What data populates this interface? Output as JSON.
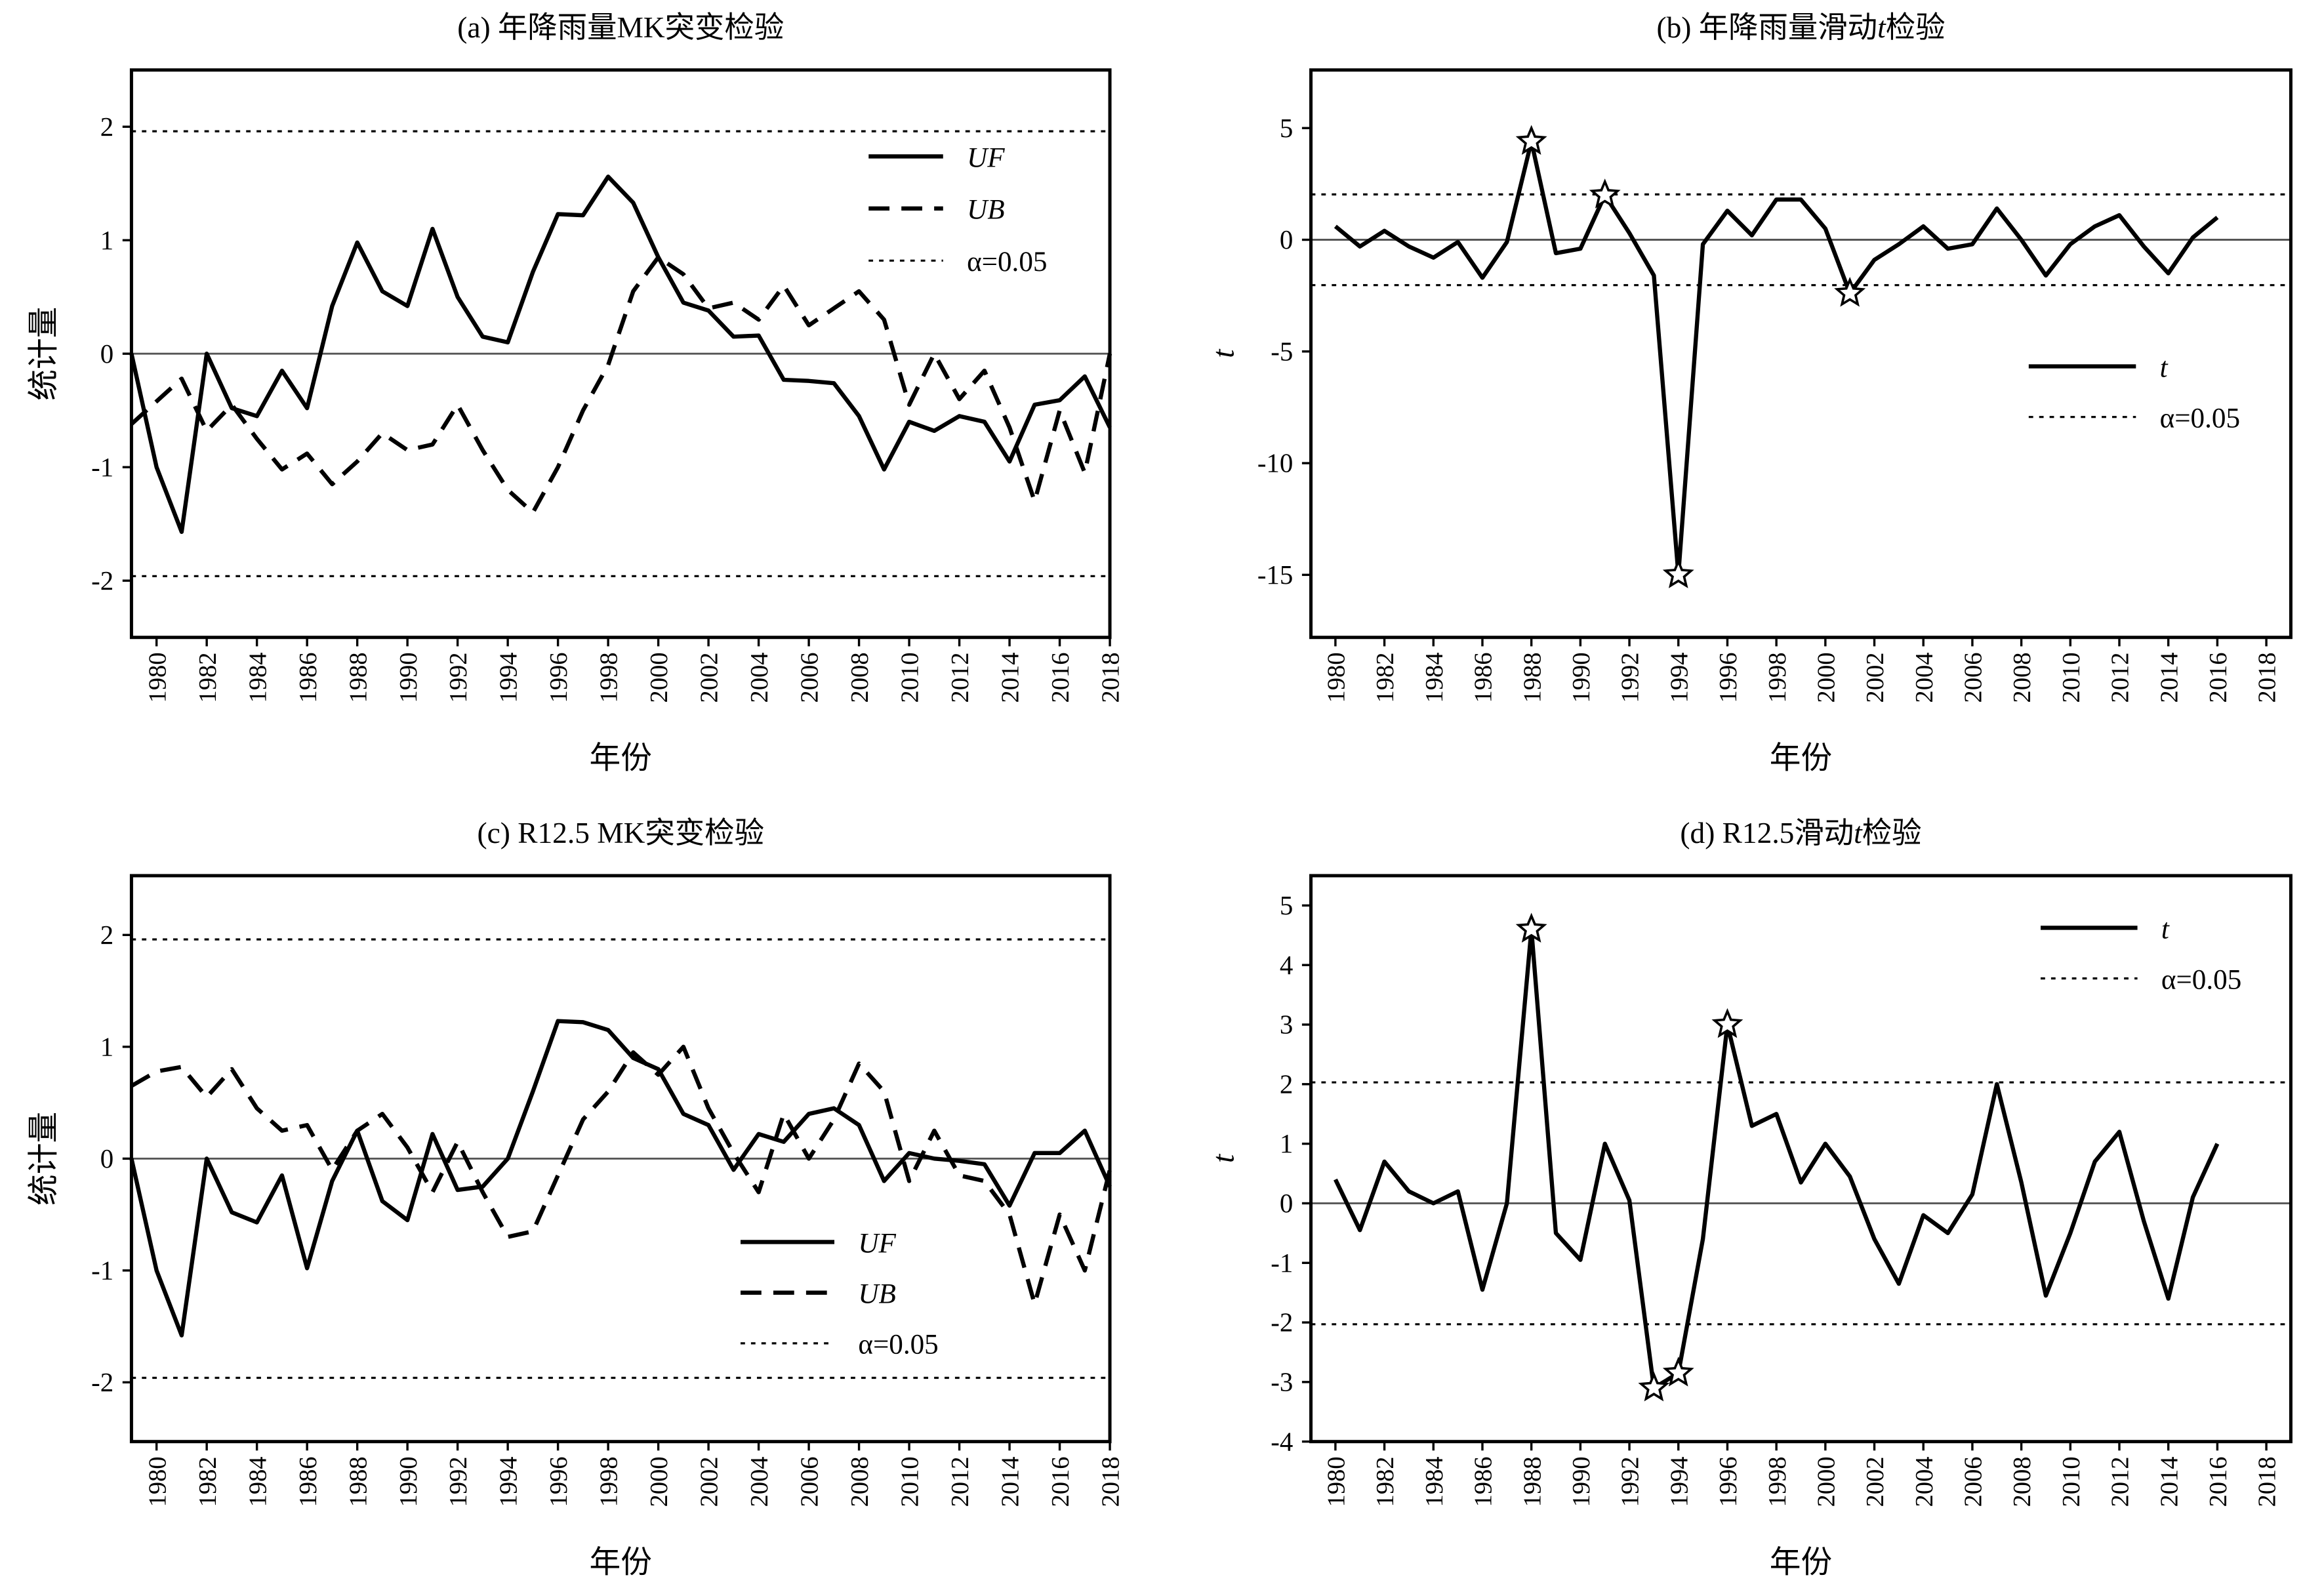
{
  "chart_data": [
    {
      "id": "a",
      "type": "line",
      "title_parts": [
        "(a) 年降雨量MK突变检验"
      ],
      "xlabel": "年份",
      "ylabel": "统计量",
      "ylabel_italic": false,
      "xlim": [
        1979,
        2018
      ],
      "ylim": [
        -2.5,
        2.5
      ],
      "xticks": [
        1980,
        1982,
        1984,
        1986,
        1988,
        1990,
        1992,
        1994,
        1996,
        1998,
        2000,
        2002,
        2004,
        2006,
        2008,
        2010,
        2012,
        2014,
        2016,
        2018
      ],
      "yticks": [
        -2,
        -1,
        0,
        1,
        2
      ],
      "zero_line": true,
      "thresholds": [
        1.96,
        -1.96
      ],
      "legend": [
        {
          "label": "UF",
          "style": "solid",
          "italic": true
        },
        {
          "label": "UB",
          "style": "dashed",
          "italic": true
        },
        {
          "label": "α=0.05",
          "style": "dotted",
          "italic_prefix": "α",
          "rest": "=0.05"
        }
      ],
      "legend_placement": "top-right",
      "x": [
        1979,
        1980,
        1981,
        1982,
        1983,
        1984,
        1985,
        1986,
        1987,
        1988,
        1989,
        1990,
        1991,
        1992,
        1993,
        1994,
        1995,
        1996,
        1997,
        1998,
        1999,
        2000,
        2001,
        2002,
        2003,
        2004,
        2005,
        2006,
        2007,
        2008,
        2009,
        2010,
        2011,
        2012,
        2013,
        2014,
        2015,
        2016,
        2017,
        2018
      ],
      "series": [
        {
          "name": "UF",
          "style": "solid",
          "values": [
            0,
            -1.0,
            -1.57,
            0,
            -0.48,
            -0.55,
            -0.15,
            -0.48,
            0.42,
            0.98,
            0.55,
            0.42,
            1.1,
            0.5,
            0.15,
            0.1,
            0.72,
            1.23,
            1.22,
            1.56,
            1.33,
            0.85,
            0.45,
            0.38,
            0.15,
            0.16,
            -0.23,
            -0.24,
            -0.26,
            -0.55,
            -1.02,
            -0.6,
            -0.68,
            -0.55,
            -0.6,
            -0.95,
            -0.45,
            -0.41,
            -0.2,
            -0.65
          ]
        },
        {
          "name": "UB",
          "style": "dashed",
          "values": [
            -0.62,
            -0.42,
            -0.22,
            -0.68,
            -0.45,
            -0.75,
            -1.02,
            -0.88,
            -1.15,
            -0.95,
            -0.7,
            -0.85,
            -0.8,
            -0.45,
            -0.85,
            -1.2,
            -1.4,
            -1.0,
            -0.5,
            -0.1,
            0.55,
            0.85,
            0.7,
            0.4,
            0.45,
            0.3,
            0.6,
            0.25,
            0.4,
            0.55,
            0.3,
            -0.45,
            0.0,
            -0.4,
            -0.15,
            -0.65,
            -1.3,
            -0.5,
            -1.05,
            0.0
          ]
        }
      ],
      "stars": []
    },
    {
      "id": "b",
      "type": "line",
      "title_parts": [
        "(b) 年降雨量滑动",
        "t",
        "检验"
      ],
      "xlabel": "年份",
      "ylabel": "t",
      "ylabel_italic": true,
      "xlim": [
        1979,
        2019
      ],
      "ylim": [
        -17.8,
        7.6
      ],
      "xticks": [
        1980,
        1982,
        1984,
        1986,
        1988,
        1990,
        1992,
        1994,
        1996,
        1998,
        2000,
        2002,
        2004,
        2006,
        2008,
        2010,
        2012,
        2014,
        2016,
        2018
      ],
      "yticks": [
        -15,
        -10,
        -5,
        0,
        5
      ],
      "zero_line": true,
      "thresholds": [
        2.03,
        -2.03
      ],
      "legend": [
        {
          "label": "t",
          "style": "solid",
          "italic": true
        },
        {
          "label": "α=0.05",
          "style": "dotted",
          "italic_prefix": "α",
          "rest": "=0.05"
        }
      ],
      "legend_placement": "center-right",
      "x": [
        1980,
        1981,
        1982,
        1983,
        1984,
        1985,
        1986,
        1987,
        1988,
        1989,
        1990,
        1991,
        1992,
        1993,
        1994,
        1995,
        1996,
        1997,
        1998,
        1999,
        2000,
        2001,
        2002,
        2003,
        2004,
        2005,
        2006,
        2007,
        2008,
        2009,
        2010,
        2011,
        2012,
        2013,
        2014,
        2015,
        2016
      ],
      "series": [
        {
          "name": "t",
          "style": "solid",
          "values": [
            0.6,
            -0.3,
            0.4,
            -0.3,
            -0.8,
            -0.1,
            -1.7,
            -0.1,
            4.4,
            -0.6,
            -0.4,
            2.0,
            0.3,
            -1.6,
            -15.0,
            -0.2,
            1.3,
            0.2,
            1.8,
            1.8,
            0.5,
            -2.4,
            -0.9,
            -0.2,
            0.6,
            -0.4,
            -0.2,
            1.4,
            0.0,
            -1.6,
            -0.2,
            0.6,
            1.1,
            -0.3,
            -1.5,
            0.1,
            1.0
          ]
        }
      ],
      "stars": [
        1988,
        1991,
        1994,
        2001
      ]
    },
    {
      "id": "c",
      "type": "line",
      "title_parts": [
        "(c) R12.5 MK突变检验"
      ],
      "xlabel": "年份",
      "ylabel": "统计量",
      "ylabel_italic": false,
      "xlim": [
        1979,
        2018
      ],
      "ylim": [
        -2.53,
        2.53
      ],
      "xticks": [
        1980,
        1982,
        1984,
        1986,
        1988,
        1990,
        1992,
        1994,
        1996,
        1998,
        2000,
        2002,
        2004,
        2006,
        2008,
        2010,
        2012,
        2014,
        2016,
        2018
      ],
      "yticks": [
        -2,
        -1,
        0,
        1,
        2
      ],
      "zero_line": true,
      "thresholds": [
        1.96,
        -1.96
      ],
      "legend": [
        {
          "label": "UF",
          "style": "solid",
          "italic": true
        },
        {
          "label": "UB",
          "style": "dashed",
          "italic": true
        },
        {
          "label": "α=0.05",
          "style": "dotted",
          "italic_prefix": "α",
          "rest": "=0.05"
        }
      ],
      "legend_placement": "lower-center",
      "x": [
        1979,
        1980,
        1981,
        1982,
        1983,
        1984,
        1985,
        1986,
        1987,
        1988,
        1989,
        1990,
        1991,
        1992,
        1993,
        1994,
        1995,
        1996,
        1997,
        1998,
        1999,
        2000,
        2001,
        2002,
        2003,
        2004,
        2005,
        2006,
        2007,
        2008,
        2009,
        2010,
        2011,
        2012,
        2013,
        2014,
        2015,
        2016,
        2017,
        2018
      ],
      "series": [
        {
          "name": "UF",
          "style": "solid",
          "values": [
            0,
            -1.0,
            -1.58,
            0,
            -0.48,
            -0.57,
            -0.15,
            -0.98,
            -0.2,
            0.25,
            -0.38,
            -0.55,
            0.22,
            -0.28,
            -0.25,
            0.0,
            0.6,
            1.23,
            1.22,
            1.15,
            0.9,
            0.8,
            0.4,
            0.3,
            -0.1,
            0.22,
            0.15,
            0.4,
            0.45,
            0.3,
            -0.2,
            0.05,
            0.0,
            -0.02,
            -0.05,
            -0.42,
            0.05,
            0.05,
            0.25,
            -0.25
          ]
        },
        {
          "name": "UB",
          "style": "dashed",
          "values": [
            0.65,
            0.78,
            0.82,
            0.55,
            0.8,
            0.45,
            0.25,
            0.3,
            -0.1,
            0.25,
            0.4,
            0.1,
            -0.3,
            0.15,
            -0.3,
            -0.7,
            -0.65,
            -0.15,
            0.35,
            0.6,
            0.95,
            0.75,
            1.0,
            0.45,
            0.05,
            -0.3,
            0.4,
            0.0,
            0.35,
            0.85,
            0.6,
            -0.2,
            0.25,
            -0.15,
            -0.2,
            -0.5,
            -1.3,
            -0.5,
            -1.0,
            -0.1
          ]
        }
      ],
      "stars": []
    },
    {
      "id": "d",
      "type": "line",
      "title_parts": [
        "(d) R12.5滑动",
        "t",
        "检验"
      ],
      "xlabel": "年份",
      "ylabel": "t",
      "ylabel_italic": true,
      "xlim": [
        1979,
        2019
      ],
      "ylim": [
        -4,
        5.5
      ],
      "xticks": [
        1980,
        1982,
        1984,
        1986,
        1988,
        1990,
        1992,
        1994,
        1996,
        1998,
        2000,
        2002,
        2004,
        2006,
        2008,
        2010,
        2012,
        2014,
        2016,
        2018
      ],
      "yticks": [
        -4,
        -3,
        -2,
        -1,
        0,
        1,
        2,
        3,
        4,
        5
      ],
      "zero_line": true,
      "thresholds": [
        2.03,
        -2.03
      ],
      "legend": [
        {
          "label": "t",
          "style": "solid",
          "italic": true
        },
        {
          "label": "α=0.05",
          "style": "dotted",
          "italic_prefix": "α",
          "rest": "=0.05"
        }
      ],
      "legend_placement": "top-right",
      "x": [
        1980,
        1981,
        1982,
        1983,
        1984,
        1985,
        1986,
        1987,
        1988,
        1989,
        1990,
        1991,
        1992,
        1993,
        1994,
        1995,
        1996,
        1997,
        1998,
        1999,
        2000,
        2001,
        2002,
        2003,
        2004,
        2005,
        2006,
        2007,
        2008,
        2009,
        2010,
        2011,
        2012,
        2013,
        2014,
        2015,
        2016
      ],
      "series": [
        {
          "name": "t",
          "style": "solid",
          "values": [
            0.4,
            -0.45,
            0.7,
            0.2,
            0.0,
            0.2,
            -1.45,
            0.0,
            4.6,
            -0.5,
            -0.95,
            1.0,
            0.05,
            -3.1,
            -2.85,
            -0.6,
            3.0,
            1.3,
            1.5,
            0.35,
            1.0,
            0.45,
            -0.6,
            -1.35,
            -0.2,
            -0.5,
            0.15,
            2.0,
            0.35,
            -1.55,
            -0.5,
            0.7,
            1.2,
            -0.3,
            -1.6,
            0.1,
            1.0
          ]
        }
      ],
      "stars": [
        1988,
        1993,
        1994,
        1996
      ]
    }
  ]
}
